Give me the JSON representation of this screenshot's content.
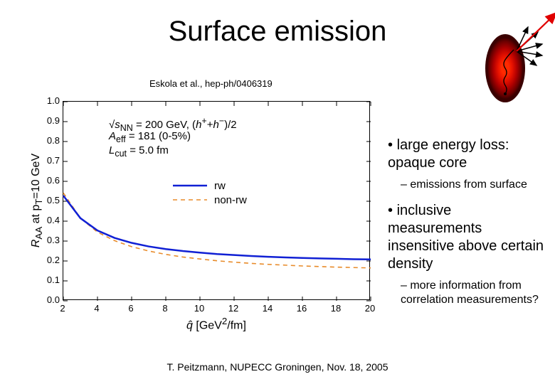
{
  "title": "Surface emission",
  "reference": "Eskola et al., hep-ph/0406319",
  "footer": "T. Peitzmann, NUPECC Groningen, Nov. 18, 2005",
  "bullets": {
    "b1": "large energy loss: opaque core",
    "s1": "emissions from surface",
    "b2": "inclusive measurements insensitive above certain density",
    "s2": "more information from correlation measurements?"
  },
  "chart": {
    "xlim": [
      2,
      20
    ],
    "ylim": [
      0.0,
      1.0
    ],
    "xticks": [
      2,
      4,
      6,
      8,
      10,
      12,
      14,
      16,
      18,
      20
    ],
    "yticks": [
      0.0,
      0.1,
      0.2,
      0.3,
      0.4,
      0.5,
      0.6,
      0.7,
      0.8,
      0.9,
      1.0
    ],
    "xlabel_html": "<i>q&#770;</i> [GeV<sup>2</sup>/fm]",
    "ylabel_html": "<i>R</i><sub>AA</sub> at p<sub>T</sub>=10 GeV",
    "annot1_html": "&#8730;<i>s</i><sub>NN</sub> = 200 GeV, (<i>h</i><sup>+</sup>+<i>h</i><sup>−</sup>)/2",
    "annot2_html": "<i>A</i><sub>eff</sub> = 181 (0-5%)",
    "annot3_html": "<i>L</i><sub>cut</sub> = 5.0 fm",
    "legend": {
      "rw": {
        "label": "rw",
        "color": "#1020d4",
        "dash": "none",
        "width": 2.5
      },
      "nonrw": {
        "label": "non-rw",
        "color": "#e88b2a",
        "dash": "6,5",
        "width": 1.6
      }
    },
    "series": {
      "rw": {
        "color": "#1020d4",
        "dash": "none",
        "width": 2.5,
        "xy": [
          [
            2,
            0.528
          ],
          [
            3,
            0.415
          ],
          [
            4,
            0.353
          ],
          [
            5,
            0.316
          ],
          [
            6,
            0.291
          ],
          [
            7,
            0.273
          ],
          [
            8,
            0.26
          ],
          [
            9,
            0.25
          ],
          [
            10,
            0.242
          ],
          [
            11,
            0.235
          ],
          [
            12,
            0.23
          ],
          [
            13,
            0.225
          ],
          [
            14,
            0.221
          ],
          [
            15,
            0.218
          ],
          [
            16,
            0.215
          ],
          [
            17,
            0.213
          ],
          [
            18,
            0.211
          ],
          [
            19,
            0.209
          ],
          [
            20,
            0.208
          ]
        ]
      },
      "nonrw": {
        "color": "#e88b2a",
        "dash": "6,5",
        "width": 1.6,
        "xy": [
          [
            2,
            0.542
          ],
          [
            3,
            0.415
          ],
          [
            4,
            0.345
          ],
          [
            5,
            0.302
          ],
          [
            6,
            0.272
          ],
          [
            7,
            0.25
          ],
          [
            8,
            0.233
          ],
          [
            9,
            0.22
          ],
          [
            10,
            0.21
          ],
          [
            11,
            0.201
          ],
          [
            12,
            0.194
          ],
          [
            13,
            0.188
          ],
          [
            14,
            0.183
          ],
          [
            15,
            0.179
          ],
          [
            16,
            0.175
          ],
          [
            17,
            0.172
          ],
          [
            18,
            0.169
          ],
          [
            19,
            0.167
          ],
          [
            20,
            0.165
          ]
        ]
      }
    },
    "colors": {
      "axis": "#000000",
      "tick": "#000000",
      "bg": "#ffffff",
      "text": "#000000"
    },
    "font": {
      "label_pt": 14,
      "tick_pt": 13,
      "annot_pt": 15
    }
  },
  "diagram": {
    "fireball_gradient": [
      "#ff2a00",
      "#e81200",
      "#b00000",
      "#6b0000",
      "#3a0000"
    ],
    "arrows_black": 5,
    "arrow_red": true
  }
}
